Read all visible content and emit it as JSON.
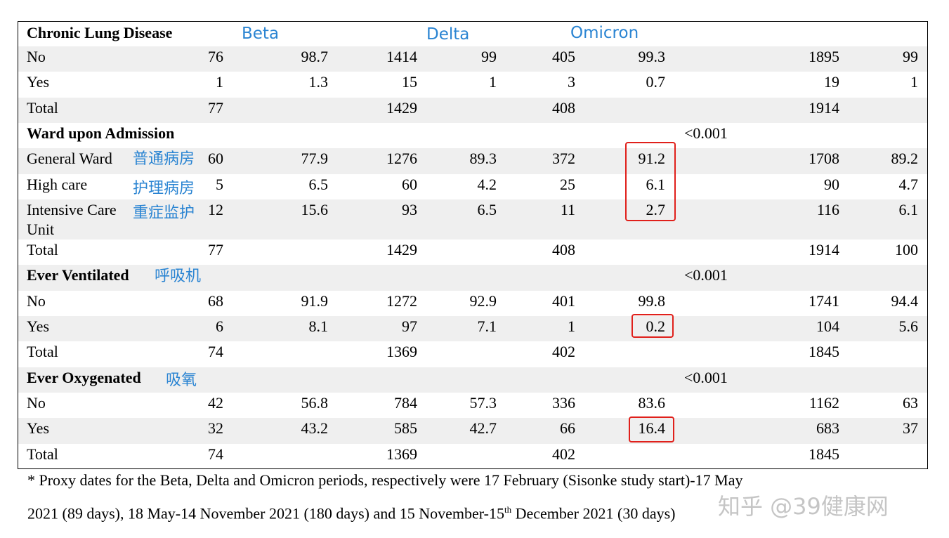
{
  "columns": [
    "Beta",
    "Delta",
    "Omicron"
  ],
  "sections": [
    {
      "title": "Chronic Lung Disease",
      "pvalue": "",
      "rows": [
        {
          "label": "No",
          "vals": [
            "76",
            "98.7",
            "1414",
            "99",
            "405",
            "99.3",
            "1895",
            "99"
          ]
        },
        {
          "label": "Yes",
          "vals": [
            "1",
            "1.3",
            "15",
            "1",
            "3",
            "0.7",
            "19",
            "1"
          ]
        },
        {
          "label": "Total",
          "vals": [
            "77",
            "",
            "1429",
            "",
            "408",
            "",
            "1914",
            ""
          ]
        }
      ]
    },
    {
      "title": "Ward upon Admission",
      "pvalue": "<0.001",
      "rows": [
        {
          "label": "General Ward",
          "vals": [
            "60",
            "77.9",
            "1276",
            "89.3",
            "372",
            "91.2",
            "1708",
            "89.2"
          ]
        },
        {
          "label": "High care",
          "vals": [
            "5",
            "6.5",
            "60",
            "4.2",
            "25",
            "6.1",
            "90",
            "4.7"
          ]
        },
        {
          "label": "Intensive Care",
          "label2": "Unit",
          "vals": [
            "12",
            "15.6",
            "93",
            "6.5",
            "11",
            "2.7",
            "116",
            "6.1"
          ]
        },
        {
          "label": "Total",
          "vals": [
            "77",
            "",
            "1429",
            "",
            "408",
            "",
            "1914",
            "100"
          ]
        }
      ]
    },
    {
      "title": "Ever Ventilated",
      "pvalue": "<0.001",
      "rows": [
        {
          "label": "No",
          "vals": [
            "68",
            "91.9",
            "1272",
            "92.9",
            "401",
            "99.8",
            "1741",
            "94.4"
          ]
        },
        {
          "label": "Yes",
          "vals": [
            "6",
            "8.1",
            "97",
            "7.1",
            "1",
            "0.2",
            "104",
            "5.6"
          ]
        },
        {
          "label": "Total",
          "vals": [
            "74",
            "",
            "1369",
            "",
            "402",
            "",
            "1845",
            ""
          ]
        }
      ]
    },
    {
      "title": "Ever Oxygenated",
      "pvalue": "<0.001",
      "rows": [
        {
          "label": "No",
          "vals": [
            "42",
            "56.8",
            "784",
            "57.3",
            "336",
            "83.6",
            "1162",
            "63"
          ]
        },
        {
          "label": "Yes",
          "vals": [
            "32",
            "43.2",
            "585",
            "42.7",
            "66",
            "16.4",
            "683",
            "37"
          ]
        },
        {
          "label": "Total",
          "vals": [
            "74",
            "",
            "1369",
            "",
            "402",
            "",
            "1845",
            ""
          ]
        }
      ]
    }
  ],
  "annotations": {
    "general_ward": "普通病房",
    "high_care": "护理病房",
    "icu": "重症监护",
    "ventilated": "呼吸机",
    "oxygenated": "吸氧"
  },
  "highlight_color": "#e0201b",
  "annotation_color": "#2a84d2",
  "footnote": {
    "line1": "* Proxy dates for the Beta, Delta and Omicron periods, respectively were 17 February  (Sisonke study start)-17 May",
    "line2_pre": "2021 (89 days), 18 May-14 November 2021 (180 days) and 15 November-15",
    "line2_sup": "th",
    "line2_post": " December 2021 (30 days)"
  },
  "watermark": "知乎 @39健康网"
}
